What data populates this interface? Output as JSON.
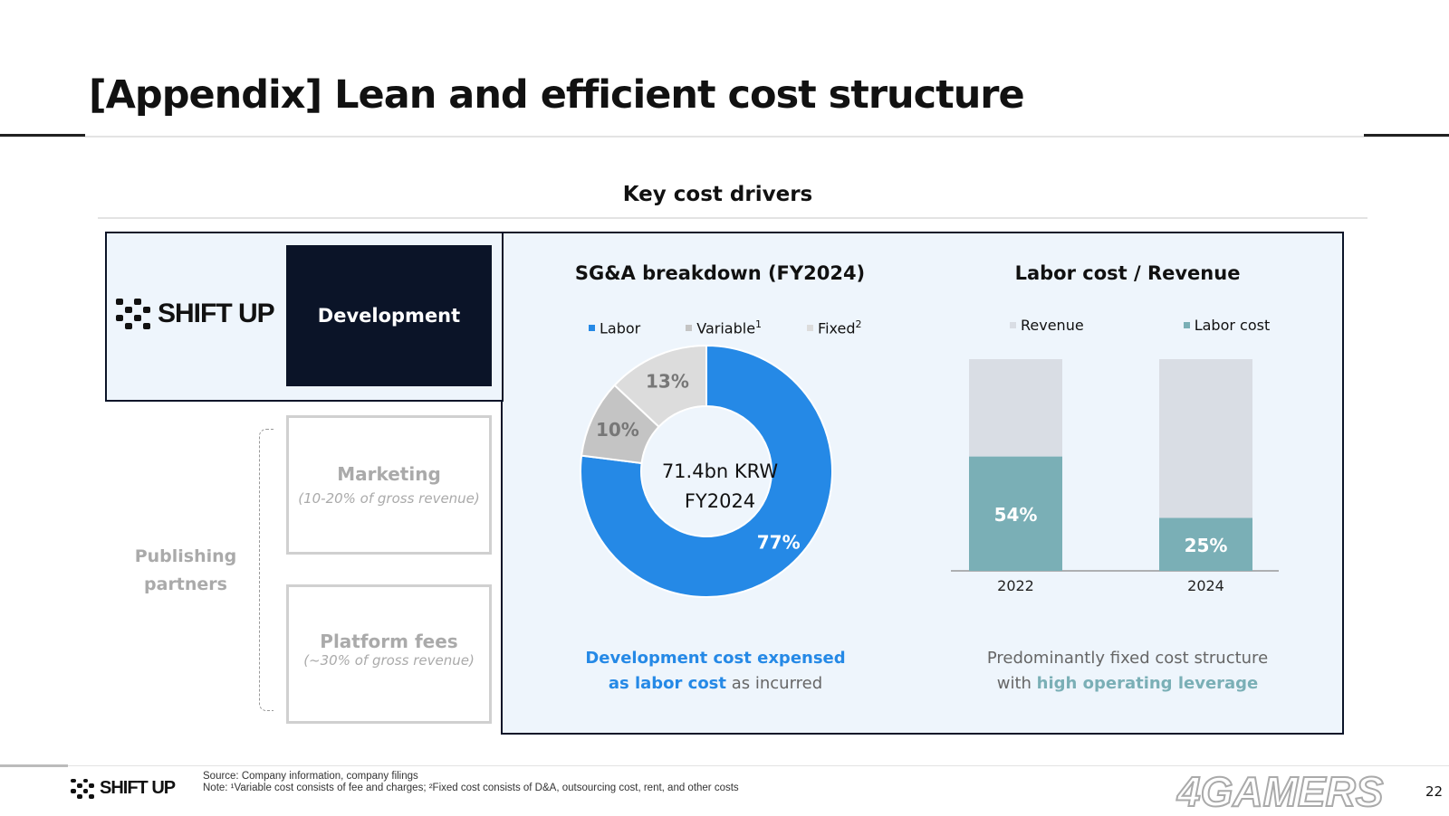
{
  "title": "[Appendix] Lean and efficient cost structure",
  "section": "Key cost drivers",
  "brand": "SHIFT UP",
  "left": {
    "development": "Development",
    "publishing": "Publishing partners",
    "marketing": {
      "title": "Marketing",
      "sub": "(10-20% of gross revenue)"
    },
    "platform": {
      "title": "Platform fees",
      "sub": "(~30% of gross revenue)"
    }
  },
  "chart_data": [
    {
      "type": "pie",
      "title": "SG&A breakdown (FY2024)",
      "center_label": [
        "71.4bn KRW",
        "FY2024"
      ],
      "categories": [
        "Labor",
        "Variable",
        "Fixed"
      ],
      "superscripts": [
        "",
        "1",
        "2"
      ],
      "values": [
        77,
        10,
        13
      ],
      "labels": [
        "77%",
        "10%",
        "13%"
      ],
      "colors": [
        "#2589e6",
        "#c4c4c4",
        "#dcdcdc"
      ]
    },
    {
      "type": "bar",
      "title": "Labor cost / Revenue",
      "categories": [
        "2022",
        "2024"
      ],
      "series": [
        {
          "name": "Revenue",
          "values": [
            100,
            100
          ],
          "color": "#d9dde4"
        },
        {
          "name": "Labor cost",
          "values": [
            54,
            25
          ],
          "color": "#7aafb6"
        }
      ],
      "labels": [
        "54%",
        "25%"
      ],
      "ylim": [
        0,
        100
      ]
    }
  ],
  "captions": {
    "pie": {
      "hl": "Development cost expensed",
      "hl2": "as labor cost",
      "rest": " as incurred"
    },
    "bar": {
      "line1": "Predominantly fixed cost structure",
      "pre": "with ",
      "hl": "high operating leverage"
    }
  },
  "footer": {
    "source": "Source: Company information, company filings",
    "note": "Note: ¹Variable cost consists of fee and charges; ²Fixed cost consists of D&A, outsourcing cost, rent, and other costs",
    "page": "22",
    "watermark": "4GAMERS"
  }
}
